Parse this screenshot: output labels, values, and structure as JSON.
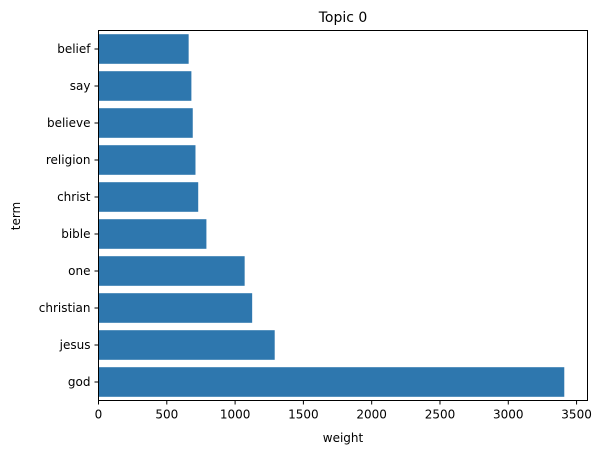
{
  "chart_data": {
    "type": "bar",
    "orientation": "horizontal",
    "title": "Topic 0",
    "xlabel": "weight",
    "ylabel": "term",
    "categories": [
      "belief",
      "say",
      "believe",
      "religion",
      "christ",
      "bible",
      "one",
      "christian",
      "jesus",
      "god"
    ],
    "values": [
      660,
      680,
      690,
      710,
      730,
      790,
      1070,
      1125,
      1290,
      3410
    ],
    "xlim": [
      0,
      3580
    ],
    "xticks": [
      0,
      500,
      1000,
      1500,
      2000,
      2500,
      3000,
      3500
    ],
    "grid": false,
    "legend": "none",
    "bar_color": "#2e77ae"
  }
}
